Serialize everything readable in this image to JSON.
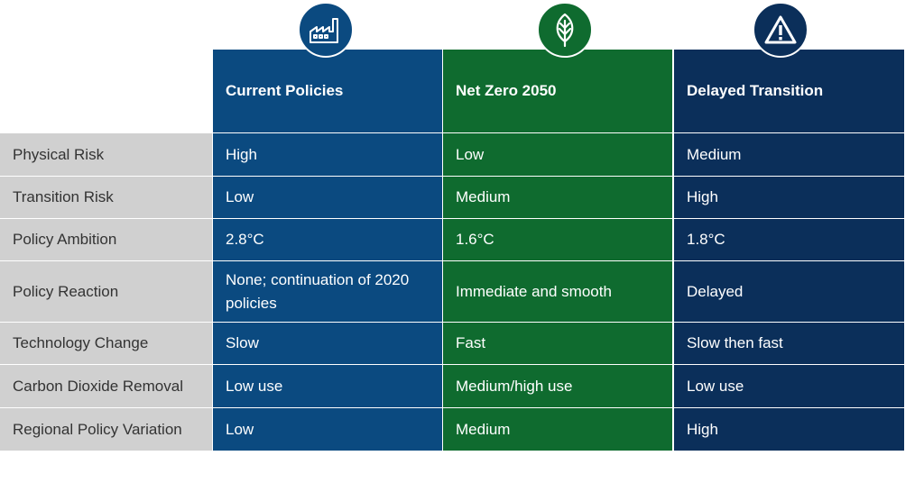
{
  "columns": [
    {
      "label": "Current Policies",
      "icon": "factory-icon",
      "color": "#0b4a80"
    },
    {
      "label": "Net Zero 2050",
      "icon": "leaf-icon",
      "color": "#0f6b2f"
    },
    {
      "label": "Delayed Transition",
      "icon": "warning-icon",
      "color": "#0b2f5a"
    }
  ],
  "rows": [
    {
      "label": "Physical Risk",
      "values": [
        "High",
        "Low",
        "Medium"
      ]
    },
    {
      "label": "Transition Risk",
      "values": [
        "Low",
        "Medium",
        "High"
      ]
    },
    {
      "label": "Policy Ambition",
      "values": [
        "2.8°C",
        "1.6°C",
        "1.8°C"
      ]
    },
    {
      "label": "Policy Reaction",
      "values": [
        "None; continuation of 2020 policies",
        "Immediate and smooth",
        "Delayed"
      ]
    },
    {
      "label": "Technology Change",
      "values": [
        "Slow",
        "Fast",
        "Slow then fast"
      ]
    },
    {
      "label": "Carbon Dioxide Removal",
      "values": [
        "Low use",
        "Medium/high use",
        "Low use"
      ]
    },
    {
      "label": "Regional Policy Variation",
      "values": [
        "Low",
        "Medium",
        "High"
      ]
    }
  ],
  "colors": {
    "label_bg": "#d0d0d0",
    "label_text": "#333333"
  }
}
